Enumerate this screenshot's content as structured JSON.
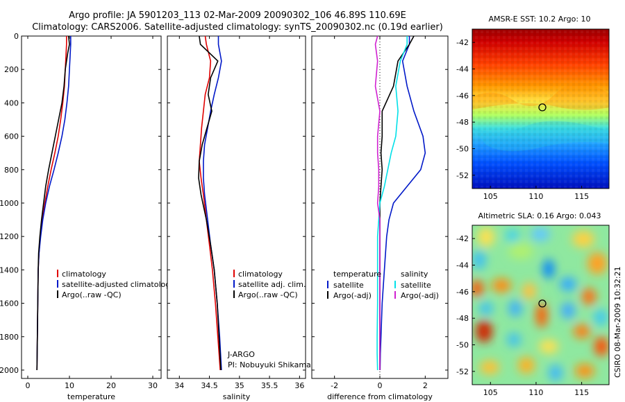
{
  "header": {
    "line1": "Argo profile: JA 5901203_113 02-Mar-2009 20090302_106 46.89S 110.69E",
    "line2": "Climatology: CARS2006. Satellite-adjusted climatology: synTS_20090302.nc (0.19d earlier)"
  },
  "credit": "CSIRO 08-Mar-2009 10:32:21",
  "colors": {
    "red": "#e00000",
    "blue": "#0018c8",
    "black": "#000000",
    "cyan": "#00e0e8",
    "magenta": "#d020d0"
  },
  "chart_data": [
    {
      "type": "line",
      "xlabel": "temperature",
      "xlim": [
        -1.5,
        32
      ],
      "ylim": [
        0,
        2050
      ],
      "y_reversed": true,
      "xticks": [
        0,
        10,
        20,
        30
      ],
      "yticks": [
        0,
        200,
        400,
        600,
        800,
        1000,
        1200,
        1400,
        1600,
        1800,
        2000
      ],
      "legend": [
        "climatology",
        "satellite-adjusted climatology",
        "Argo(..raw -QC)"
      ],
      "series": [
        {
          "name": "climatology",
          "color": "red",
          "x": [
            9.3,
            9.3,
            9.2,
            9.0,
            8.8,
            8.4,
            7.9,
            7.3,
            6.5,
            5.6,
            4.8,
            4.1,
            3.5,
            3.0,
            2.7,
            2.5,
            2.4,
            2.3,
            2.2
          ],
          "y": [
            0,
            50,
            100,
            200,
            300,
            400,
            500,
            600,
            700,
            800,
            900,
            1000,
            1100,
            1200,
            1300,
            1400,
            1600,
            1800,
            2000
          ]
        },
        {
          "name": "satellite-adjusted climatology",
          "color": "blue",
          "x": [
            10.3,
            10.3,
            10.2,
            10.0,
            9.8,
            9.4,
            8.9,
            8.2,
            7.3,
            6.3,
            5.2,
            4.3,
            3.6,
            3.1,
            2.7,
            2.5,
            2.4,
            2.3,
            2.2
          ],
          "y": [
            0,
            50,
            100,
            200,
            300,
            400,
            500,
            600,
            700,
            800,
            900,
            1000,
            1100,
            1200,
            1300,
            1400,
            1600,
            1800,
            2000
          ]
        },
        {
          "name": "Argo(..raw -QC)",
          "color": "black",
          "x": [
            9.8,
            10.0,
            9.6,
            9.0,
            8.7,
            8.2,
            7.4,
            6.6,
            5.8,
            5.0,
            4.3,
            3.8,
            3.3,
            2.9,
            2.6,
            2.5,
            2.4,
            2.3,
            2.2
          ],
          "y": [
            0,
            50,
            100,
            200,
            300,
            400,
            500,
            600,
            700,
            800,
            900,
            1000,
            1100,
            1200,
            1300,
            1400,
            1600,
            1800,
            2000
          ]
        }
      ]
    },
    {
      "type": "line",
      "xlabel": "salinity",
      "xlim": [
        33.8,
        36.1
      ],
      "ylim": [
        0,
        2050
      ],
      "y_reversed": true,
      "xticks": [
        34,
        34.5,
        35,
        35.5,
        36
      ],
      "legend": [
        "climatology",
        "satellite adj. clim.",
        "Argo(..raw -QC)"
      ],
      "annotation": [
        "J-ARGO",
        "PI: Nobuyuki Shikama"
      ],
      "series": [
        {
          "name": "climatology",
          "color": "red",
          "x": [
            34.43,
            34.45,
            34.52,
            34.5,
            34.43,
            34.4,
            34.37,
            34.35,
            34.33,
            34.36,
            34.4,
            34.45,
            34.5,
            34.55,
            34.6,
            34.64,
            34.68
          ],
          "y": [
            0,
            50,
            150,
            250,
            350,
            450,
            550,
            650,
            750,
            850,
            950,
            1100,
            1250,
            1400,
            1600,
            1800,
            2000
          ]
        },
        {
          "name": "satellite adj. clim.",
          "color": "blue",
          "x": [
            34.65,
            34.65,
            34.7,
            34.65,
            34.58,
            34.52,
            34.47,
            34.42,
            34.4,
            34.4,
            34.42,
            34.47,
            34.52,
            34.58,
            34.63,
            34.67,
            34.7
          ],
          "y": [
            0,
            50,
            150,
            250,
            350,
            450,
            550,
            650,
            750,
            850,
            950,
            1100,
            1250,
            1400,
            1600,
            1800,
            2000
          ]
        },
        {
          "name": "Argo(..raw -QC)",
          "color": "black",
          "x": [
            34.33,
            34.35,
            34.64,
            34.52,
            34.48,
            34.54,
            34.46,
            34.38,
            34.33,
            34.32,
            34.36,
            34.45,
            34.52,
            34.58,
            34.63,
            34.66,
            34.69
          ],
          "y": [
            0,
            50,
            150,
            250,
            350,
            450,
            550,
            650,
            750,
            850,
            950,
            1100,
            1250,
            1400,
            1600,
            1800,
            2000
          ]
        }
      ]
    },
    {
      "type": "line",
      "xlabel": "difference from climatology",
      "xlim": [
        -3,
        3
      ],
      "ylim": [
        0,
        2050
      ],
      "y_reversed": true,
      "xticks": [
        -2,
        0,
        2
      ],
      "legend_groups": [
        {
          "title": "temperature",
          "items": [
            "satellite",
            "Argo(-adj)"
          ]
        },
        {
          "title": "salinity",
          "items": [
            "satellite",
            "Argo(-adj)"
          ]
        }
      ],
      "series": [
        {
          "name": "temperature satellite",
          "color": "blue",
          "x": [
            1.3,
            1.3,
            1.0,
            1.2,
            1.5,
            1.9,
            2.0,
            1.8,
            1.2,
            0.6,
            0.4,
            0.3,
            0.2,
            0.1,
            0.05,
            0.02,
            0.01
          ],
          "y": [
            0,
            50,
            150,
            300,
            450,
            600,
            700,
            800,
            900,
            1000,
            1100,
            1200,
            1400,
            1600,
            1800,
            1900,
            2000
          ]
        },
        {
          "name": "temperature Argo(-adj)",
          "color": "black",
          "x": [
            1.5,
            1.3,
            0.8,
            0.6,
            0.1,
            0.1,
            0.05,
            0.1,
            0.05,
            0.0,
            0.0,
            0.0,
            0.0,
            0.0,
            0.0,
            0.0,
            0.0
          ],
          "y": [
            0,
            50,
            150,
            300,
            450,
            600,
            700,
            800,
            900,
            1000,
            1100,
            1200,
            1400,
            1600,
            1800,
            1900,
            2000
          ]
        },
        {
          "name": "salinity satellite",
          "color": "cyan",
          "x": [
            1.2,
            1.2,
            0.9,
            0.7,
            0.8,
            0.7,
            0.5,
            0.35,
            0.2,
            0.0,
            -0.05,
            -0.1,
            -0.1,
            -0.1,
            -0.12,
            -0.12,
            -0.1
          ],
          "y": [
            0,
            50,
            150,
            300,
            450,
            600,
            700,
            800,
            900,
            1000,
            1100,
            1200,
            1400,
            1600,
            1800,
            1900,
            2000
          ]
        },
        {
          "name": "salinity Argo(-adj)",
          "color": "magenta",
          "x": [
            -0.1,
            -0.2,
            -0.1,
            -0.2,
            0.0,
            -0.1,
            -0.1,
            -0.05,
            -0.05,
            -0.1,
            0.0,
            0.0,
            0.0,
            0.0,
            0.0,
            0.0,
            0.0
          ],
          "y": [
            0,
            50,
            150,
            300,
            450,
            600,
            700,
            800,
            900,
            1000,
            1100,
            1200,
            1400,
            1600,
            1800,
            1900,
            2000
          ]
        }
      ]
    },
    {
      "type": "heatmap",
      "title": "AMSR-E SST: 10.2 Argo: 10",
      "xlim": [
        103,
        118
      ],
      "ylim": [
        -53,
        -41
      ],
      "xticks": [
        105,
        110,
        115
      ],
      "yticks": [
        -42,
        -44,
        -46,
        -48,
        -50,
        -52
      ],
      "marker": {
        "lon": 110.69,
        "lat": -46.89
      }
    },
    {
      "type": "heatmap",
      "title": "Altimetric SLA: 0.16 Argo: 0.043",
      "xlim": [
        103,
        118
      ],
      "ylim": [
        -53,
        -41
      ],
      "xticks": [
        105,
        110,
        115
      ],
      "yticks": [
        -42,
        -44,
        -46,
        -48,
        -50,
        -52
      ],
      "marker": {
        "lon": 110.69,
        "lat": -46.89
      }
    }
  ]
}
